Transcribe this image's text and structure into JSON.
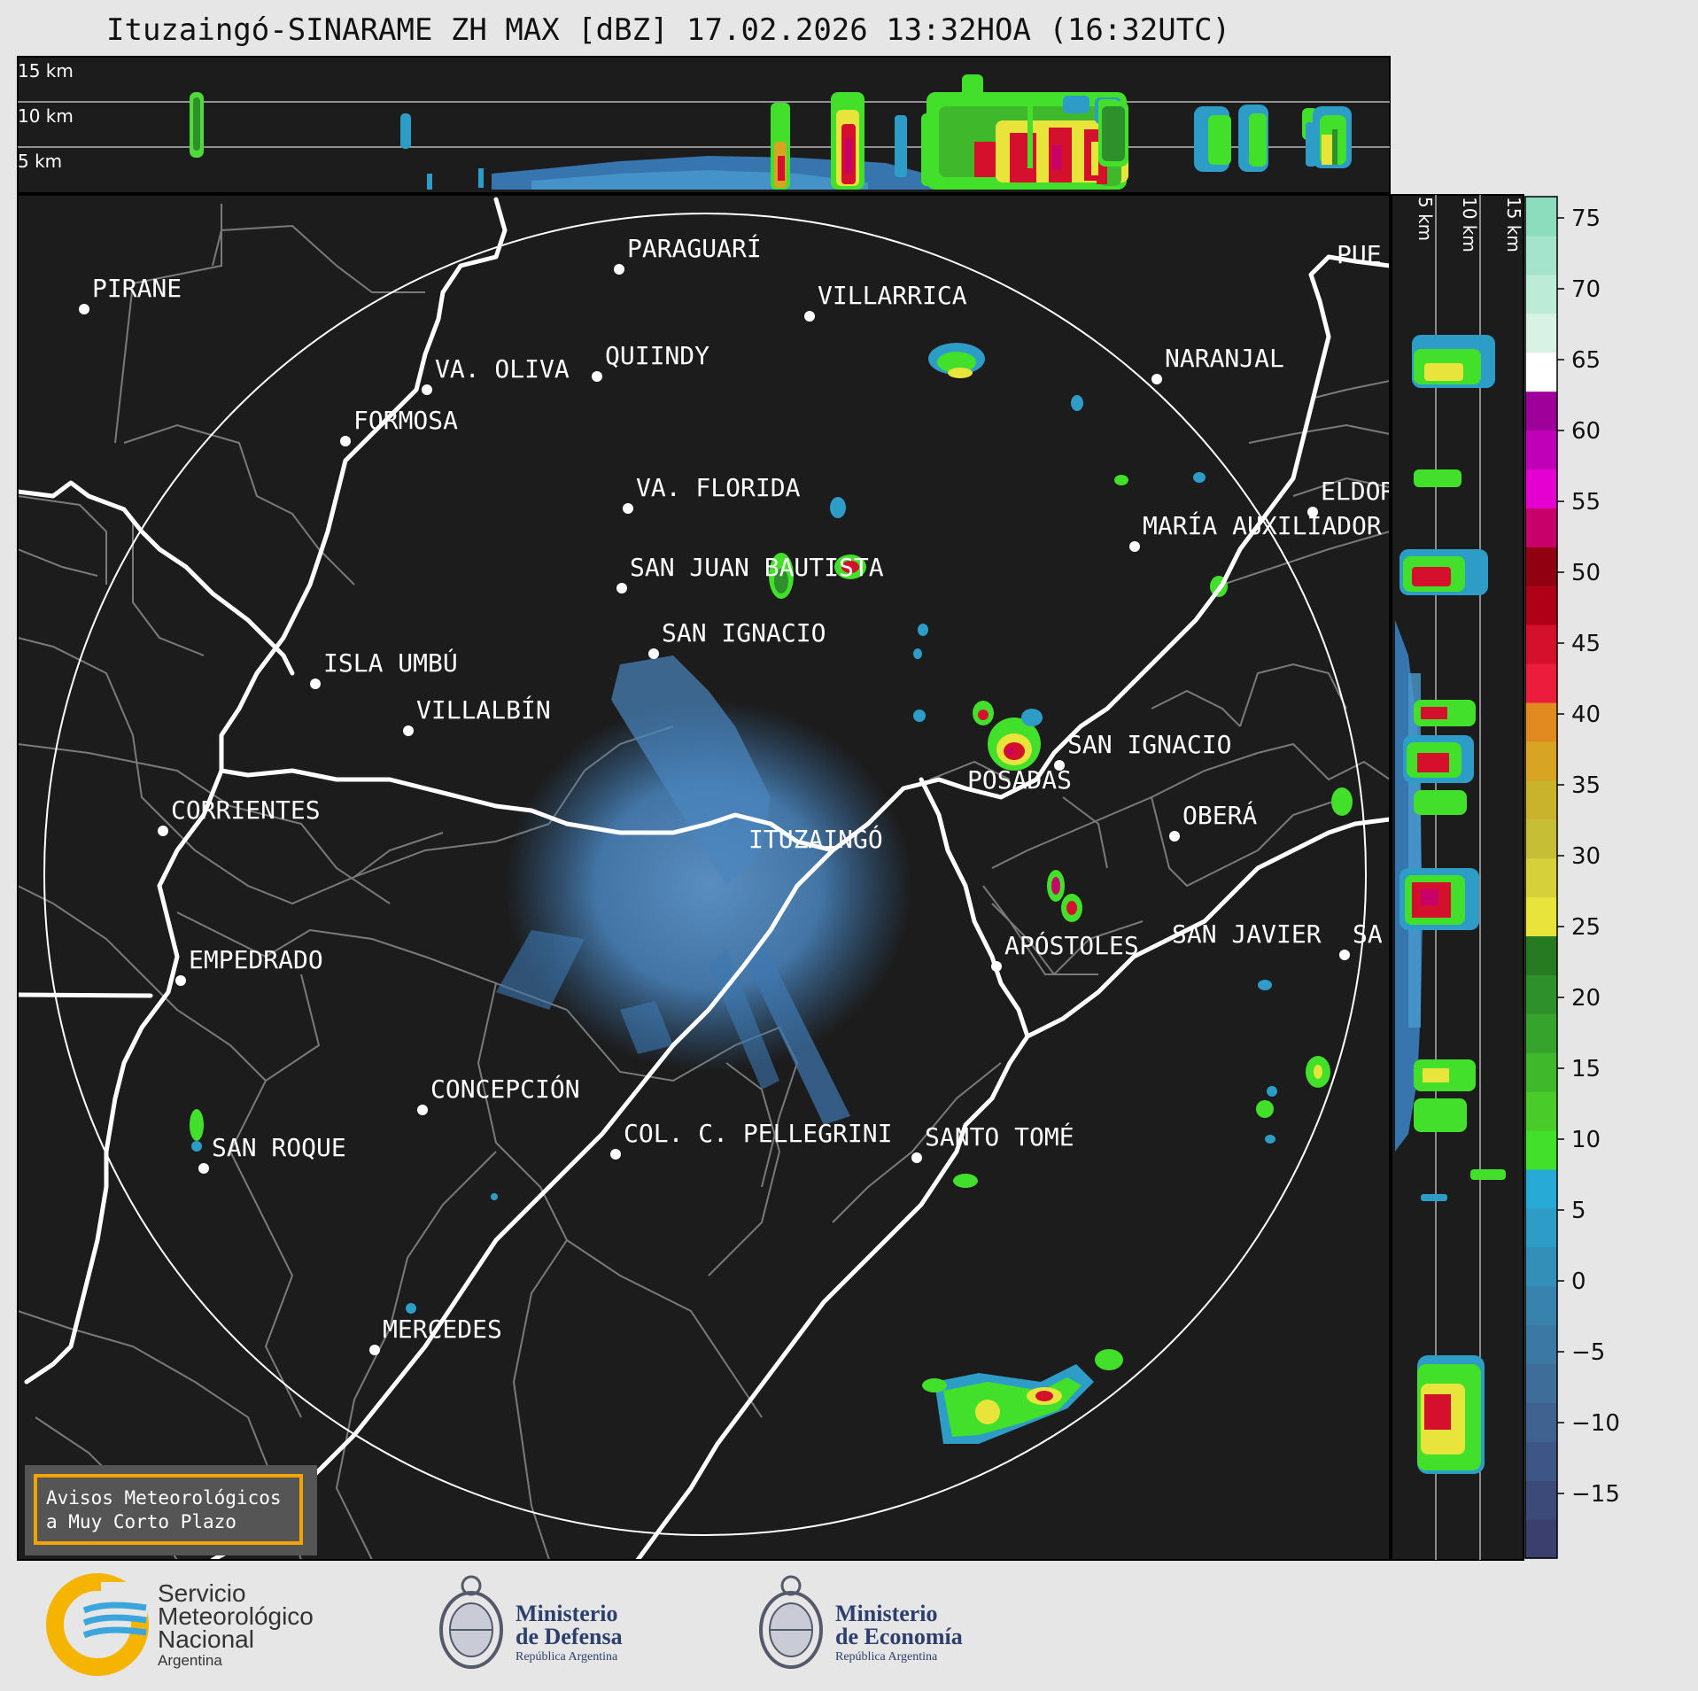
{
  "header": {
    "title": "Ituzaingó-SINARAME ZH MAX [dBZ] 17.02.2026 13:32HOA (16:32UTC)"
  },
  "top_profile": {
    "height_labels": [
      "15 km",
      "10 km",
      "5 km"
    ]
  },
  "side_profile": {
    "height_labels": [
      "5 km",
      "10 km",
      "15 km"
    ]
  },
  "colorbar": {
    "ticks": [
      "75",
      "70",
      "65",
      "60",
      "55",
      "50",
      "45",
      "40",
      "35",
      "30",
      "25",
      "20",
      "15",
      "10",
      "5",
      "0",
      "−5",
      "−10",
      "−15"
    ],
    "palette": [
      "#3a3f6e",
      "#3c4a7a",
      "#3e5686",
      "#3f6290",
      "#3f6d9a",
      "#3b78a4",
      "#3883ae",
      "#348fb8",
      "#2d9cc6",
      "#28aad6",
      "#42e02a",
      "#49cc2a",
      "#3fb82c",
      "#36a42c",
      "#2e902a",
      "#267a22",
      "#e8e43c",
      "#d6d03a",
      "#c6be34",
      "#cab32c",
      "#d8a424",
      "#e08a20",
      "#ec1c3c",
      "#d4102c",
      "#b00018",
      "#900010",
      "#c8006a",
      "#e400d0",
      "#c000b8",
      "#a0009a",
      "#ffffff",
      "#d8f2e6",
      "#bcecd8",
      "#a4e4cc",
      "#8cdcbe"
    ]
  },
  "map": {
    "radar_site": "ITUZAINGÓ",
    "places": [
      "PIRANE",
      "PARAGUARÍ",
      "VILLARRICA",
      "QUIINDY",
      "VA. OLIVA",
      "NARANJAL",
      "FORMOSA",
      "VA. FLORIDA",
      "ELDOR",
      "MARÍA AUXILIADOR",
      "SAN JUAN BAUTISTA",
      "SAN IGNACIO",
      "ISLA UMBÚ",
      "VILLALBÍN",
      "SAN IGNACIO",
      "POSADAS",
      "CORRIENTES",
      "OBERÁ",
      "EMPEDRADO",
      "APÓSTOLES",
      "SAN JAVIER",
      "SA",
      "CONCEPCIÓN",
      "COL. C. PELLEGRINI",
      "SANTO TOMÉ",
      "SAN ROQUE",
      "MERCEDES",
      "PUE"
    ],
    "warning_box": {
      "line1": "Avisos Meteorológicos",
      "line2": "a Muy Corto Plazo"
    }
  },
  "footer": {
    "smn": {
      "line1": "Servicio",
      "line2": "Meteorológico",
      "line3": "Nacional",
      "line4": "Argentina"
    },
    "defensa": {
      "line1": "Ministerio",
      "line2": "de Defensa",
      "line3": "República Argentina"
    },
    "economia": {
      "line1": "Ministerio",
      "line2": "de Economía",
      "line3": "República Argentina"
    }
  }
}
